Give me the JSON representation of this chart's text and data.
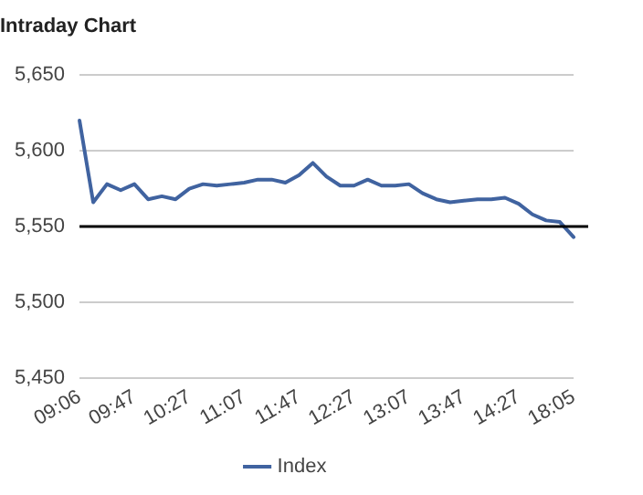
{
  "chart_data": {
    "type": "line",
    "title": "Intraday Chart",
    "categories": [
      "09:06",
      null,
      null,
      null,
      "09:47",
      null,
      null,
      null,
      "10:27",
      null,
      null,
      null,
      "11:07",
      null,
      null,
      null,
      "11:47",
      null,
      null,
      null,
      "12:27",
      null,
      null,
      null,
      "13:07",
      null,
      null,
      null,
      "13:47",
      null,
      null,
      null,
      "14:27",
      null,
      null,
      null,
      "18:05"
    ],
    "series": [
      {
        "name": "Index",
        "color": "#4063a0",
        "values": [
          5620,
          5566,
          5578,
          5574,
          5578,
          5568,
          5570,
          5568,
          5575,
          5578,
          5577,
          5578,
          5579,
          5581,
          5581,
          5579,
          5584,
          5592,
          5583,
          5577,
          5577,
          5581,
          5577,
          5577,
          5578,
          5572,
          5568,
          5566,
          5567,
          5568,
          5568,
          5569,
          5565,
          5558,
          5554,
          5553,
          5543
        ]
      }
    ],
    "ylim": [
      5450,
      5650
    ],
    "yticks": [
      {
        "value": 5450,
        "label": "5,450"
      },
      {
        "value": 5500,
        "label": "5,500"
      },
      {
        "value": 5550,
        "label": "5,550"
      },
      {
        "value": 5600,
        "label": "5,600"
      },
      {
        "value": 5650,
        "label": "5,650"
      }
    ],
    "ref_lines": [
      {
        "axis": "y",
        "value": 5550,
        "color": "#000000"
      }
    ],
    "grid": "y",
    "legend": "bottom",
    "marker": "none",
    "line_style": "solid"
  }
}
